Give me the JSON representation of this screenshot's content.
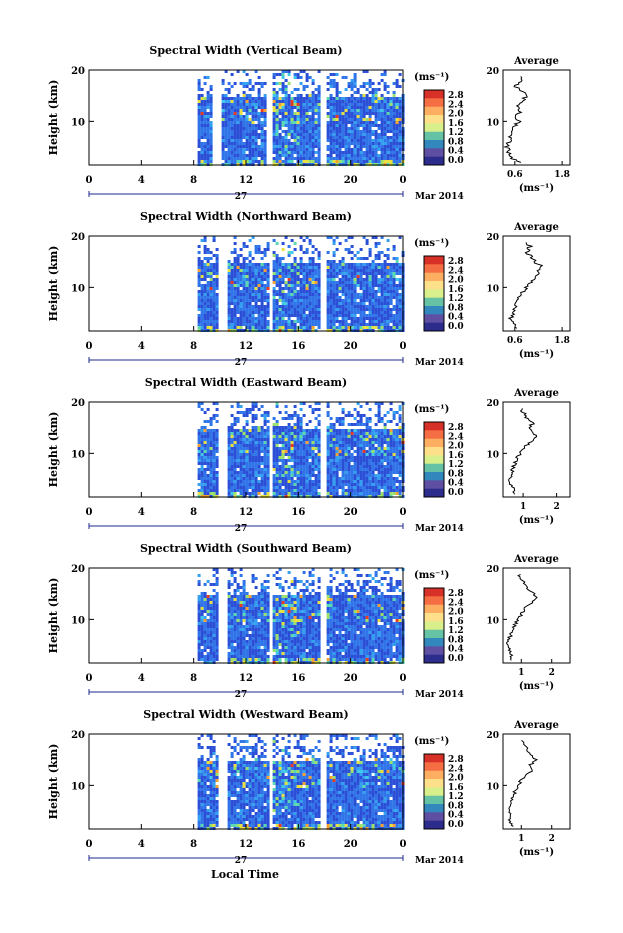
{
  "xlabel": "Local Time",
  "colorbar": {
    "unit": "(ms⁻¹)",
    "ticks": [
      "2.8",
      "2.4",
      "2.0",
      "1.6",
      "1.2",
      "0.8",
      "0.4",
      "0.0"
    ],
    "colors": [
      "#d73027",
      "#f46d43",
      "#fdae61",
      "#fee08b",
      "#d9ef8b",
      "#66c2a5",
      "#3288bd",
      "#5e4fa2",
      "#2c2c8c"
    ]
  },
  "chart_data": [
    {
      "type": "heatmap",
      "title": "Spectral Width (Vertical Beam)",
      "ylabel": "Height (km)",
      "x_ticks": [
        "0",
        "4",
        "8",
        "12",
        "16",
        "20",
        "0"
      ],
      "y_ticks": [
        "20",
        "10"
      ],
      "date_label": "27",
      "month_label": "Mar 2014",
      "xlim": [
        0,
        24
      ],
      "ylim": [
        1.5,
        20
      ],
      "data_start_hour": 8.3,
      "gaps_hours": [
        [
          9.4,
          10.0
        ],
        [
          13.5,
          13.9
        ],
        [
          17.6,
          18.0
        ]
      ],
      "average": {
        "title": "Average",
        "xlabel": "(ms⁻¹)",
        "x_ticks": [
          "0.6",
          "1.8"
        ],
        "xlim": [
          0.3,
          2.0
        ],
        "y_ticks": [
          "20",
          "10"
        ],
        "profile_km": [
          2,
          3,
          4,
          5,
          6,
          7,
          8,
          9,
          10,
          11,
          12,
          13,
          14,
          15,
          16,
          17,
          18,
          19
        ],
        "profile_values": [
          0.7,
          0.5,
          0.45,
          0.4,
          0.45,
          0.5,
          0.55,
          0.6,
          0.7,
          0.6,
          0.75,
          0.65,
          0.8,
          0.9,
          0.75,
          0.6,
          0.8,
          0.7
        ]
      }
    },
    {
      "type": "heatmap",
      "title": "Spectral Width (Northward Beam)",
      "ylabel": "Height (km)",
      "x_ticks": [
        "0",
        "4",
        "8",
        "12",
        "16",
        "20",
        "0"
      ],
      "y_ticks": [
        "20",
        "10"
      ],
      "date_label": "27",
      "month_label": "Mar 2014",
      "xlim": [
        0,
        24
      ],
      "ylim": [
        1.5,
        20
      ],
      "data_start_hour": 8.3,
      "gaps_hours": [
        [
          9.9,
          10.5
        ],
        [
          13.6,
          14.0
        ],
        [
          17.6,
          18.0
        ]
      ],
      "average": {
        "title": "Average",
        "xlabel": "(ms⁻¹)",
        "x_ticks": [
          "0.6",
          "1.8"
        ],
        "xlim": [
          0.3,
          2.0
        ],
        "y_ticks": [
          "20",
          "10"
        ],
        "profile_km": [
          2,
          3,
          4,
          5,
          6,
          7,
          8,
          9,
          10,
          11,
          12,
          13,
          14,
          15,
          16,
          17,
          18,
          19
        ],
        "profile_values": [
          0.6,
          0.55,
          0.5,
          0.55,
          0.6,
          0.65,
          0.7,
          0.8,
          0.9,
          1.0,
          1.1,
          1.2,
          1.3,
          1.1,
          1.0,
          0.9,
          1.0,
          0.8
        ]
      }
    },
    {
      "type": "heatmap",
      "title": "Spectral Width (Eastward Beam)",
      "ylabel": "Height (km)",
      "x_ticks": [
        "0",
        "4",
        "8",
        "12",
        "16",
        "20",
        "0"
      ],
      "y_ticks": [
        "20",
        "10"
      ],
      "date_label": "27",
      "month_label": "Mar 2014",
      "xlim": [
        0,
        24
      ],
      "ylim": [
        1.5,
        20
      ],
      "data_start_hour": 8.3,
      "gaps_hours": [
        [
          9.9,
          10.4
        ],
        [
          13.6,
          14.0
        ],
        [
          17.6,
          18.0
        ]
      ],
      "average": {
        "title": "Average",
        "xlabel": "(ms⁻¹)",
        "x_ticks": [
          "1",
          "2"
        ],
        "xlim": [
          0.4,
          2.4
        ],
        "y_ticks": [
          "20",
          "10"
        ],
        "profile_km": [
          2,
          3,
          4,
          5,
          6,
          7,
          8,
          9,
          10,
          11,
          12,
          13,
          14,
          15,
          16,
          17,
          18,
          19
        ],
        "profile_values": [
          0.8,
          0.7,
          0.65,
          0.6,
          0.65,
          0.7,
          0.75,
          0.8,
          0.9,
          1.0,
          1.2,
          1.4,
          1.3,
          1.2,
          1.3,
          1.1,
          1.0,
          0.9
        ]
      }
    },
    {
      "type": "heatmap",
      "title": "Spectral Width (Southward Beam)",
      "ylabel": "Height (km)",
      "x_ticks": [
        "0",
        "4",
        "8",
        "12",
        "16",
        "20",
        "0"
      ],
      "y_ticks": [
        "20",
        "10"
      ],
      "date_label": "27",
      "month_label": "Mar 2014",
      "xlim": [
        0,
        24
      ],
      "ylim": [
        1.5,
        20
      ],
      "data_start_hour": 8.3,
      "gaps_hours": [
        [
          9.8,
          10.4
        ],
        [
          13.6,
          14.0
        ],
        [
          17.6,
          18.0
        ]
      ],
      "average": {
        "title": "Average",
        "xlabel": "(ms⁻¹)",
        "x_ticks": [
          "1",
          "2"
        ],
        "xlim": [
          0.4,
          2.6
        ],
        "y_ticks": [
          "20",
          "10"
        ],
        "profile_km": [
          2,
          3,
          4,
          5,
          6,
          7,
          8,
          9,
          10,
          11,
          12,
          13,
          14,
          15,
          16,
          17,
          18,
          19
        ],
        "profile_values": [
          0.7,
          0.65,
          0.6,
          0.55,
          0.6,
          0.65,
          0.7,
          0.8,
          0.9,
          1.0,
          1.1,
          1.3,
          1.5,
          1.4,
          1.2,
          1.1,
          1.0,
          0.9
        ]
      }
    },
    {
      "type": "heatmap",
      "title": "Spectral Width (Westward Beam)",
      "ylabel": "Height (km)",
      "x_ticks": [
        "0",
        "4",
        "8",
        "12",
        "16",
        "20",
        "0"
      ],
      "y_ticks": [
        "20",
        "10"
      ],
      "date_label": "27",
      "month_label": "Mar 2014",
      "xlim": [
        0,
        24
      ],
      "ylim": [
        1.5,
        20
      ],
      "data_start_hour": 8.3,
      "gaps_hours": [
        [
          9.8,
          10.4
        ],
        [
          13.6,
          14.0
        ],
        [
          17.6,
          18.0
        ]
      ],
      "average": {
        "title": "Average",
        "xlabel": "(ms⁻¹)",
        "x_ticks": [
          "1",
          "2"
        ],
        "xlim": [
          0.4,
          2.6
        ],
        "y_ticks": [
          "20",
          "10"
        ],
        "profile_km": [
          2,
          3,
          4,
          5,
          6,
          7,
          8,
          9,
          10,
          11,
          12,
          13,
          14,
          15,
          16,
          17,
          18,
          19
        ],
        "profile_values": [
          0.7,
          0.65,
          0.6,
          0.6,
          0.65,
          0.7,
          0.75,
          0.8,
          0.9,
          1.0,
          1.2,
          1.4,
          1.3,
          1.5,
          1.3,
          1.2,
          1.1,
          1.0
        ]
      }
    }
  ]
}
